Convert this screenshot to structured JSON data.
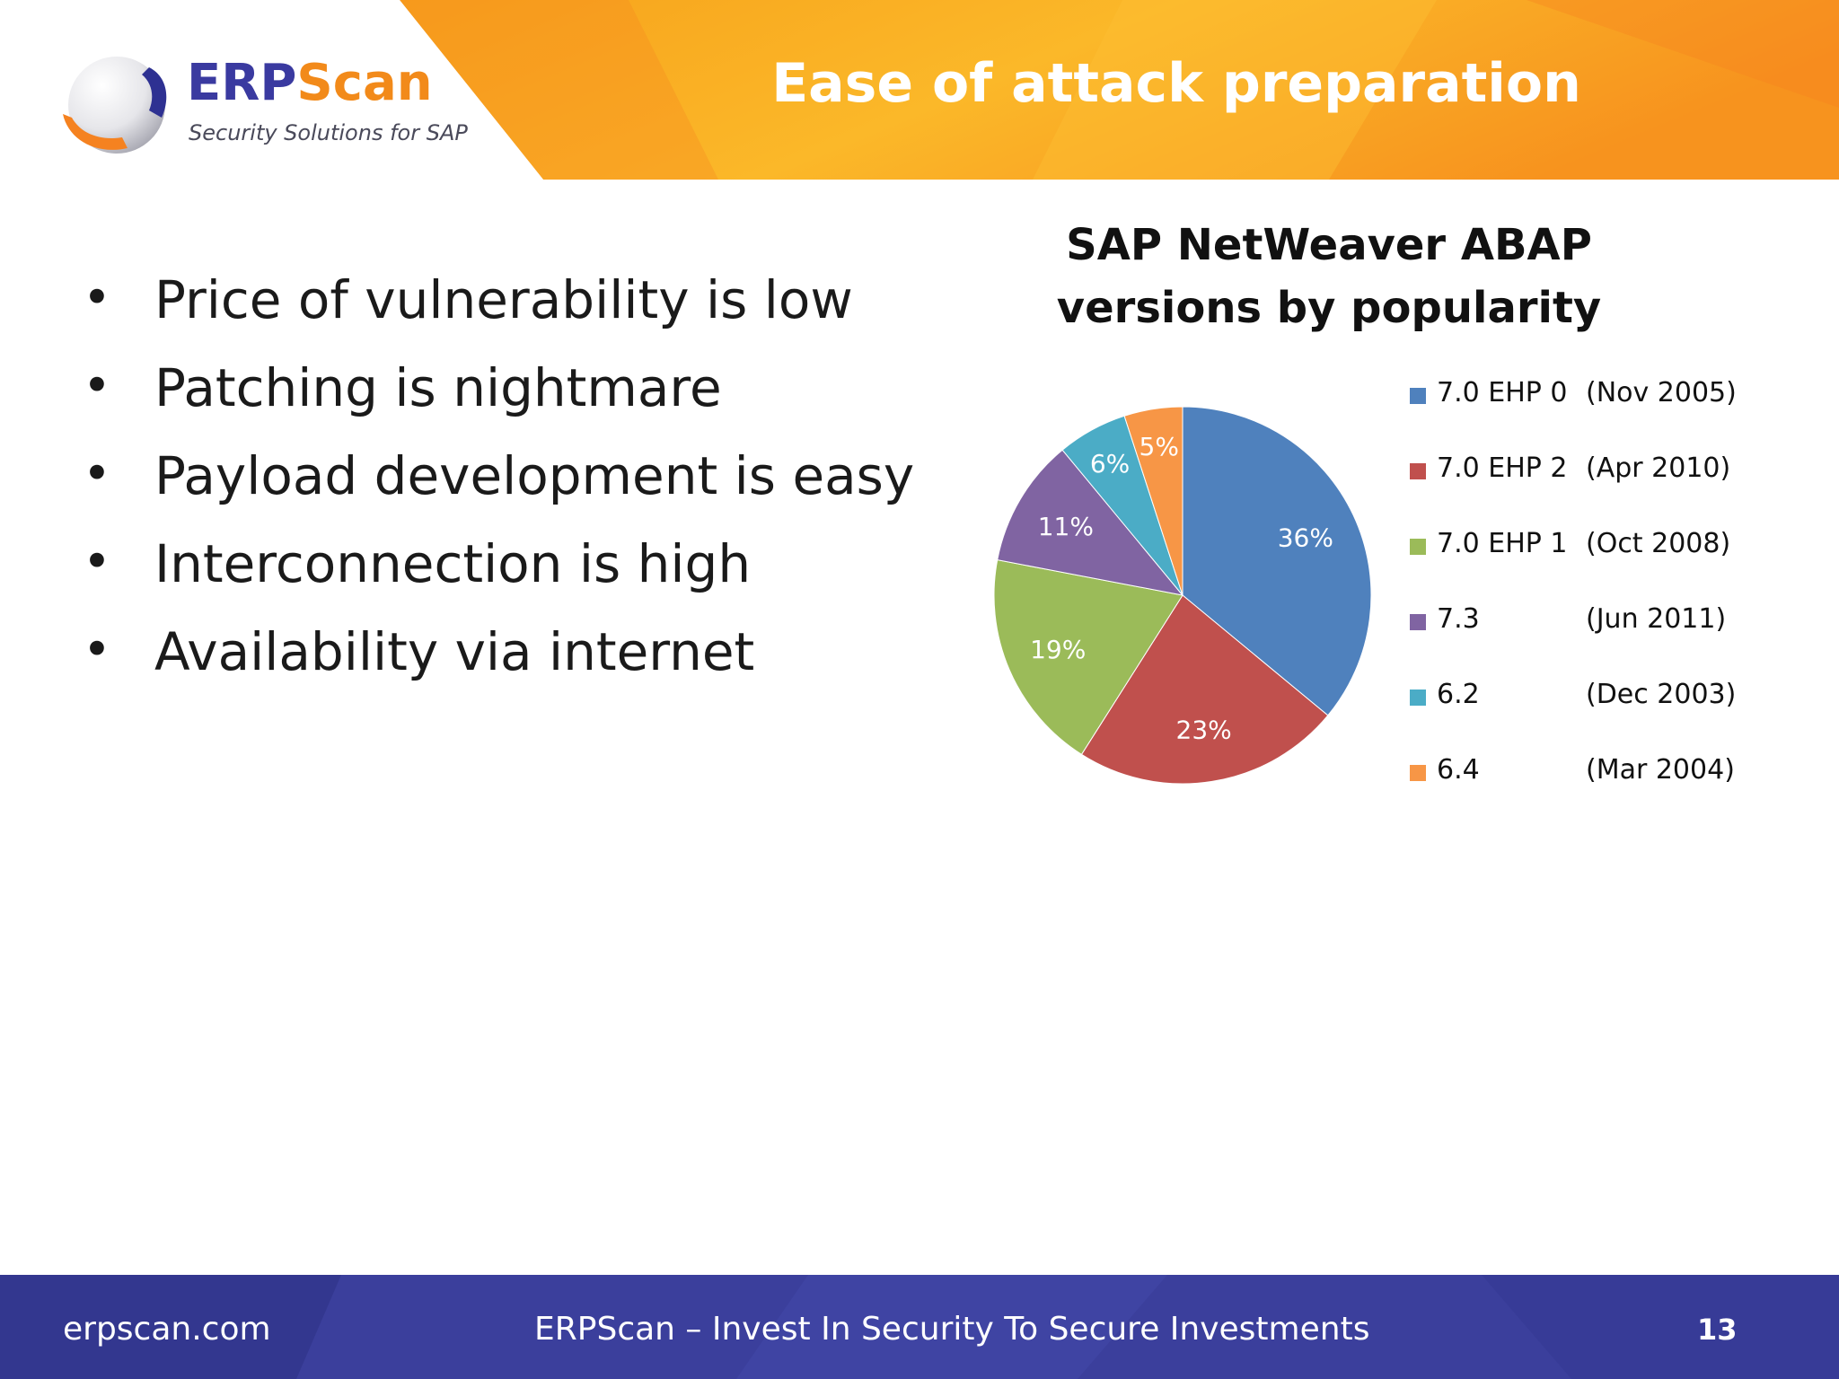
{
  "header": {
    "title": "Ease of attack preparation",
    "logo": {
      "name_part1": "ERP",
      "name_part2": "Scan",
      "tagline": "Security Solutions for SAP"
    }
  },
  "bullets": [
    "Price of vulnerability is low",
    "Patching is nightmare",
    "Payload development is easy",
    "Interconnection is high",
    "Availability via internet"
  ],
  "bullet_symbol": "•",
  "chart_data": {
    "type": "pie",
    "title": "SAP NetWeaver ABAP versions by popularity",
    "title_lines": [
      "SAP NetWeaver ABAP",
      "versions by popularity"
    ],
    "legend_position": "right",
    "slices": [
      {
        "name": "7.0 EHP 0",
        "date": "(Nov 2005)",
        "value": 36,
        "label": "36%",
        "color": "#4f81bd"
      },
      {
        "name": "7.0 EHP 2",
        "date": "(Apr  2010)",
        "value": 23,
        "label": "23%",
        "color": "#c0504d"
      },
      {
        "name": "7.0 EHP 1",
        "date": "(Oct 2008)",
        "value": 19,
        "label": "19%",
        "color": "#9bbb59"
      },
      {
        "name": "7.3",
        "date": "(Jun 2011)",
        "value": 11,
        "label": "11%",
        "color": "#8064a2"
      },
      {
        "name": "6.2",
        "date": "(Dec  2003)",
        "value": 6,
        "label": "6%",
        "color": "#4bacc6"
      },
      {
        "name": "6.4",
        "date": "(Mar 2004)",
        "value": 5,
        "label": "5%",
        "color": "#f79646"
      }
    ]
  },
  "footer": {
    "website": "erpscan.com",
    "motto": "ERPScan – Invest In Security To Secure Investments",
    "page_number": "13"
  },
  "colors": {
    "header_orange": "#f8a51c",
    "header_deep_orange": "#f58220",
    "footer_blue": "#3b3f9c",
    "logo_blue": "#3a3aa0",
    "logo_orange": "#f28a1a"
  }
}
